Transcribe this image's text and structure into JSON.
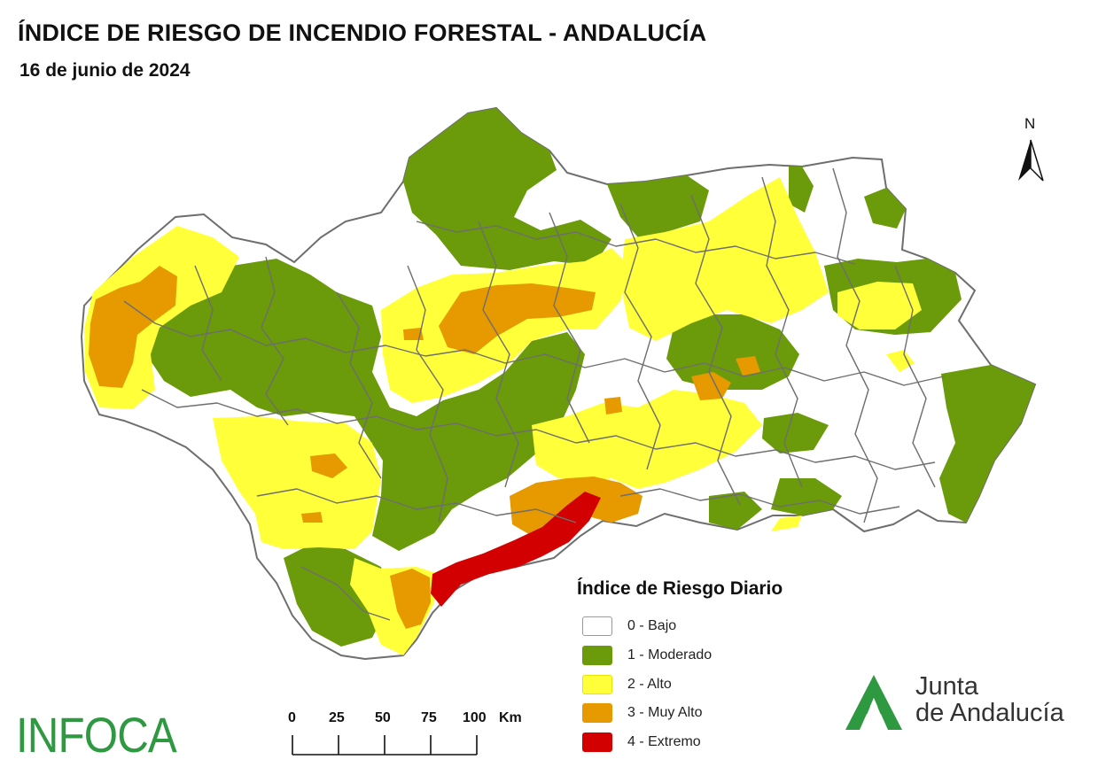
{
  "title": "ÍNDICE DE RIESGO DE INCENDIO FORESTAL - ANDALUCÍA",
  "subtitle": "16 de junio de 2024",
  "north_label": "N",
  "legend": {
    "title": "Índice de Riesgo Diario",
    "items": [
      {
        "label": "0 - Bajo",
        "color": "#ffffff"
      },
      {
        "label": "1 - Moderado",
        "color": "#6b9a0a"
      },
      {
        "label": "2 - Alto",
        "color": "#ffff3a"
      },
      {
        "label": "3 - Muy Alto",
        "color": "#e69a00"
      },
      {
        "label": "4 - Extremo",
        "color": "#d20000"
      }
    ]
  },
  "scale": {
    "labels": [
      "0",
      "25",
      "50",
      "75",
      "100"
    ],
    "unit": "Km"
  },
  "brand_left": "INFOCA",
  "brand_right": {
    "line1": "Junta",
    "line2": "de Andalucía",
    "logo_color": "#2e9940"
  },
  "colors": {
    "border": "#6e6e6e",
    "low": "#ffffff",
    "moderate": "#6b9a0a",
    "high": "#ffff3a",
    "very_high": "#e69a00",
    "extreme": "#d20000"
  }
}
